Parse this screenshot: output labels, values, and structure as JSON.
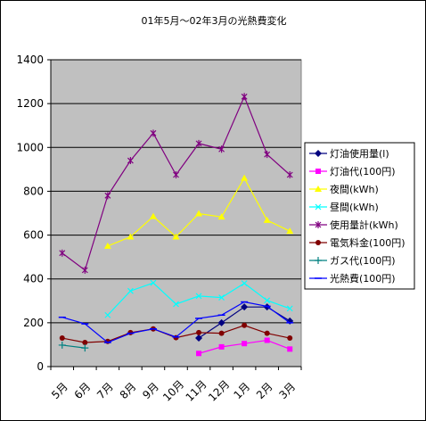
{
  "chart_data": {
    "type": "line",
    "title": "01年5月～02年3月の光熱費変化",
    "categories": [
      "5月",
      "6月",
      "7月",
      "8月",
      "9月",
      "10月",
      "11月",
      "12月",
      "1月",
      "2月",
      "3月"
    ],
    "ylim": [
      0,
      1400
    ],
    "yticks": [
      0,
      200,
      400,
      600,
      800,
      1000,
      1200,
      1400
    ],
    "grid": "horizontal",
    "legend": "right",
    "background": "#c0c0c0",
    "series": [
      {
        "name": "灯油使用量(l)",
        "color": "#000080",
        "marker": "diamond",
        "values": [
          null,
          null,
          null,
          null,
          null,
          null,
          130,
          200,
          272,
          272,
          208
        ]
      },
      {
        "name": "灯油代(100円)",
        "color": "#ff00ff",
        "marker": "square",
        "values": [
          null,
          null,
          null,
          null,
          null,
          null,
          60,
          90,
          105,
          120,
          80
        ]
      },
      {
        "name": "夜間(kWh)",
        "color": "#ffff00",
        "marker": "triangle",
        "values": [
          null,
          null,
          550,
          592,
          685,
          592,
          698,
          683,
          860,
          668,
          618
        ]
      },
      {
        "name": "昼間(kWh)",
        "color": "#00ffff",
        "marker": "x",
        "values": [
          null,
          null,
          235,
          345,
          382,
          285,
          322,
          315,
          380,
          302,
          265
        ]
      },
      {
        "name": "使用量計(kWh)",
        "color": "#800080",
        "marker": "star",
        "values": [
          518,
          440,
          780,
          940,
          1065,
          875,
          1018,
          992,
          1232,
          968,
          875
        ]
      },
      {
        "name": "電気料金(100円)",
        "color": "#800000",
        "marker": "circle",
        "values": [
          130,
          110,
          115,
          155,
          172,
          132,
          155,
          152,
          188,
          152,
          130
        ]
      },
      {
        "name": "ガス代(100円)",
        "color": "#008080",
        "marker": "plus",
        "values": [
          98,
          85,
          null,
          null,
          null,
          null,
          null,
          null,
          null,
          null,
          null
        ]
      },
      {
        "name": "光熱費(100円)",
        "color": "#0000ff",
        "marker": "dash",
        "values": [
          225,
          195,
          110,
          152,
          172,
          135,
          220,
          235,
          295,
          275,
          200
        ]
      }
    ]
  }
}
